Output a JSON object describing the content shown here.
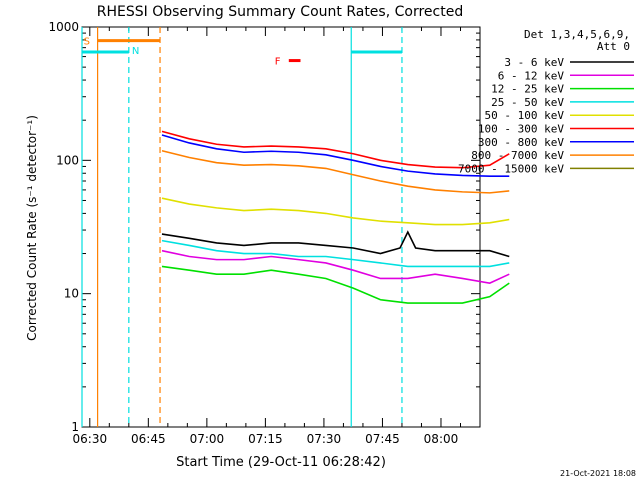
{
  "chart_data": {
    "type": "line",
    "title": "RHESSI Observing Summary Count Rates, Corrected",
    "xlabel": "Start Time (29-Oct-11 06:28:42)",
    "ylabel": "Corrected Count Rate (s⁻¹ detector⁻¹)",
    "yscale": "log",
    "ylim": [
      1,
      1000
    ],
    "xlim_minutes_after_0628": [
      0,
      102
    ],
    "x_tick_labels": [
      "06:30",
      "06:45",
      "07:00",
      "07:15",
      "07:30",
      "07:45",
      "08:00"
    ],
    "x_tick_minutes": [
      2,
      17,
      32,
      47,
      62,
      77,
      92
    ],
    "y_tick_labels": [
      "1",
      "10",
      "100",
      "1000"
    ],
    "y_tick_values": [
      1,
      10,
      100,
      1000
    ],
    "legend_header": [
      "Det 1,3,4,5,6,9,",
      "Att 0"
    ],
    "series": [
      {
        "name": "3 - 6 keV",
        "color": "#000000",
        "x": [
          0,
          7,
          14,
          21,
          28,
          35,
          42,
          49,
          56,
          61,
          63,
          65,
          70,
          77,
          84,
          89
        ],
        "y": [
          28,
          26,
          24,
          23,
          24,
          24,
          23,
          22,
          20,
          22,
          29,
          22,
          21,
          21,
          21,
          19
        ]
      },
      {
        "name": "6 - 12 keV",
        "color": "#e000e0",
        "x": [
          0,
          7,
          14,
          21,
          28,
          35,
          42,
          49,
          56,
          63,
          70,
          77,
          84,
          89
        ],
        "y": [
          21,
          19,
          18,
          18,
          19,
          18,
          17,
          15,
          13,
          13,
          14,
          13,
          12,
          14
        ]
      },
      {
        "name": "12 - 25 keV",
        "color": "#00e000",
        "x": [
          0,
          7,
          14,
          21,
          28,
          35,
          42,
          49,
          56,
          63,
          70,
          77,
          84,
          89
        ],
        "y": [
          16,
          15,
          14,
          14,
          15,
          14,
          13,
          11,
          9,
          8.5,
          8.5,
          8.5,
          9.5,
          12
        ]
      },
      {
        "name": "25 - 50 keV",
        "color": "#00e0e0",
        "x": [
          0,
          7,
          14,
          21,
          28,
          35,
          42,
          49,
          56,
          63,
          70,
          77,
          84,
          89
        ],
        "y": [
          25,
          23,
          21,
          20,
          20,
          19,
          19,
          18,
          17,
          16,
          16,
          16,
          16,
          17
        ]
      },
      {
        "name": "50 - 100 keV",
        "color": "#e0e000",
        "x": [
          0,
          7,
          14,
          21,
          28,
          35,
          42,
          49,
          56,
          63,
          70,
          77,
          84,
          89
        ],
        "y": [
          52,
          47,
          44,
          42,
          43,
          42,
          40,
          37,
          35,
          34,
          33,
          33,
          34,
          36
        ]
      },
      {
        "name": "100 - 300 keV",
        "color": "#ff0000",
        "x": [
          0,
          7,
          14,
          21,
          28,
          35,
          42,
          49,
          56,
          63,
          70,
          77,
          84,
          89
        ],
        "y": [
          165,
          145,
          132,
          126,
          128,
          126,
          122,
          112,
          100,
          93,
          89,
          88,
          92,
          112
        ]
      },
      {
        "name": "300 - 800 keV",
        "color": "#0000ff",
        "x": [
          0,
          7,
          14,
          21,
          28,
          35,
          42,
          49,
          56,
          63,
          70,
          77,
          84,
          89
        ],
        "y": [
          155,
          135,
          122,
          115,
          117,
          115,
          110,
          100,
          90,
          83,
          79,
          77,
          76,
          76
        ]
      },
      {
        "name": "800 - 7000 keV",
        "color": "#ff8000",
        "x": [
          0,
          7,
          14,
          21,
          28,
          35,
          42,
          49,
          56,
          63,
          70,
          77,
          84,
          89
        ],
        "y": [
          118,
          105,
          96,
          92,
          93,
          91,
          87,
          78,
          70,
          64,
          60,
          58,
          57,
          59
        ]
      },
      {
        "name": "7000 - 15000 keV",
        "color": "#808000",
        "x": [],
        "y": []
      }
    ],
    "attenuator_state": {
      "label": "S",
      "color": "#ff8000",
      "level": 790,
      "x_range": [
        4,
        20
      ]
    },
    "night_state": {
      "label": "N",
      "color": "#00e0e0",
      "level": 650,
      "x_ranges": [
        [
          0,
          12
        ],
        [
          69,
          82
        ]
      ]
    },
    "flare_marker": {
      "label": "F",
      "color": "#ff0000",
      "level": 560,
      "x_range": [
        53,
        56
      ]
    },
    "vertical_markers": [
      {
        "minute": 0.0,
        "color": "#00e0e0",
        "style": "solid"
      },
      {
        "minute": 4.0,
        "color": "#ff8000",
        "style": "solid"
      },
      {
        "minute": 12.0,
        "color": "#00e0e0",
        "style": "dashed"
      },
      {
        "minute": 20.0,
        "color": "#ff8000",
        "style": "dashed"
      },
      {
        "minute": 69.0,
        "color": "#00e0e0",
        "style": "solid"
      },
      {
        "minute": 82.0,
        "color": "#00e0e0",
        "style": "dashed"
      }
    ]
  },
  "footer": {
    "timestamp": "21-Oct-2021 18:08"
  }
}
